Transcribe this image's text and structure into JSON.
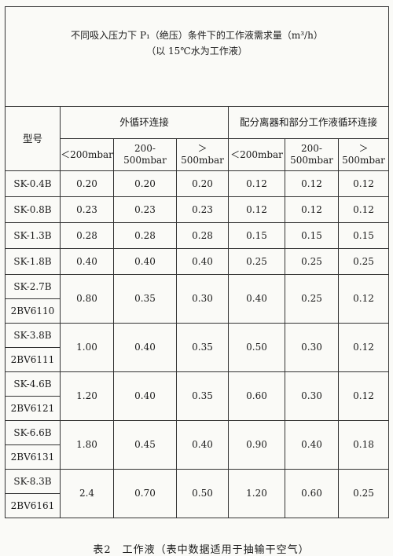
{
  "table": {
    "title_line1": "不同吸入压力下 P₁（绝压）条件下的工作液需求量（m³/h）",
    "title_line2": "（以 15℃水为工作液）",
    "model_header": "型号",
    "group1_header": "外循环连接",
    "group2_header": "配分离器和部分工作液循环连接",
    "pressure_labels": [
      "＜200mbar",
      "200-500mbar",
      "＞500mbar",
      "＜200mbar",
      "200-500mbar",
      "＞500mbar"
    ],
    "single_rows": [
      {
        "model": "SK-0.4B",
        "values": [
          "0.20",
          "0.20",
          "0.20",
          "0.12",
          "0.12",
          "0.12"
        ]
      },
      {
        "model": "SK-0.8B",
        "values": [
          "0.23",
          "0.23",
          "0.23",
          "0.12",
          "0.12",
          "0.12"
        ]
      },
      {
        "model": "SK-1.3B",
        "values": [
          "0.28",
          "0.28",
          "0.28",
          "0.15",
          "0.15",
          "0.15"
        ]
      },
      {
        "model": "SK-1.8B",
        "values": [
          "0.40",
          "0.40",
          "0.40",
          "0.25",
          "0.25",
          "0.25"
        ]
      }
    ],
    "pair_rows": [
      {
        "model_a": "SK-2.7B",
        "model_b": "2BV6110",
        "values": [
          "0.80",
          "0.35",
          "0.30",
          "0.40",
          "0.25",
          "0.12"
        ]
      },
      {
        "model_a": "SK-3.8B",
        "model_b": "2BV6111",
        "values": [
          "1.00",
          "0.40",
          "0.35",
          "0.50",
          "0.30",
          "0.12"
        ]
      },
      {
        "model_a": "SK-4.6B",
        "model_b": "2BV6121",
        "values": [
          "1.20",
          "0.40",
          "0.35",
          "0.60",
          "0.30",
          "0.12"
        ]
      },
      {
        "model_a": "SK-6.6B",
        "model_b": "2BV6131",
        "values": [
          "1.80",
          "0.45",
          "0.40",
          "0.90",
          "0.40",
          "0.18"
        ]
      },
      {
        "model_a": "SK-8.3B",
        "model_b": "2BV6161",
        "values": [
          "2.4",
          "0.70",
          "0.50",
          "1.20",
          "0.60",
          "0.25"
        ]
      }
    ]
  },
  "caption": "表2　工作液（表中数据适用于抽输干空气）"
}
